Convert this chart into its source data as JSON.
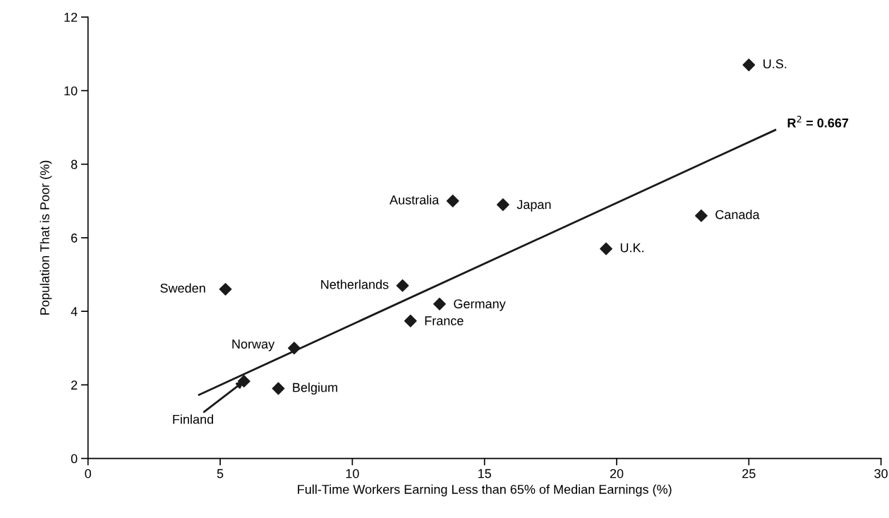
{
  "chart_data": {
    "type": "scatter",
    "xlabel": "Full-Time Workers Earning Less than 65% of Median Earnings (%)",
    "ylabel": "Population That is Poor (%)",
    "xlim": [
      0,
      30
    ],
    "ylim": [
      0,
      12
    ],
    "xticks": [
      0,
      5,
      10,
      15,
      20,
      25,
      30
    ],
    "yticks": [
      0,
      2,
      4,
      6,
      8,
      10,
      12
    ],
    "grid": false,
    "legend": false,
    "series": [
      {
        "marker": "diamond",
        "color": "#1a1a1a",
        "x": [
          25.0,
          23.2,
          19.6,
          15.7,
          13.8,
          11.9,
          13.3,
          12.2,
          5.2,
          7.8,
          5.9,
          7.2
        ],
        "values": [
          10.7,
          6.6,
          5.7,
          6.9,
          7.0,
          4.7,
          4.2,
          3.74,
          4.6,
          3.0,
          2.1,
          1.9
        ]
      },
      {
        "type": "line",
        "marker": "none",
        "color": "#1a1a1a",
        "x": [
          4.2,
          26.0
        ],
        "values": [
          1.73,
          8.93
        ]
      }
    ],
    "annotations": [
      {
        "text": "U.S.",
        "x": 25.0,
        "y": 10.7
      },
      {
        "text": "Canada",
        "x": 23.2,
        "y": 6.6
      },
      {
        "text": "U.K.",
        "x": 19.6,
        "y": 5.7
      },
      {
        "text": "Japan",
        "x": 15.7,
        "y": 6.9
      },
      {
        "text": "Australia",
        "x": 13.8,
        "y": 7.0
      },
      {
        "text": "Netherlands",
        "x": 11.9,
        "y": 4.7
      },
      {
        "text": "Germany",
        "x": 13.3,
        "y": 4.2
      },
      {
        "text": "France",
        "x": 12.2,
        "y": 3.74
      },
      {
        "text": "Sweden",
        "x": 5.2,
        "y": 4.6
      },
      {
        "text": "Norway",
        "x": 7.8,
        "y": 3.0
      },
      {
        "text": "Finland",
        "x": 5.9,
        "y": 2.1
      },
      {
        "text": "Belgium",
        "x": 7.2,
        "y": 1.9
      },
      {
        "text": "R$^{2}$ = 0.667",
        "x": 26.0,
        "y": 8.93
      }
    ]
  }
}
